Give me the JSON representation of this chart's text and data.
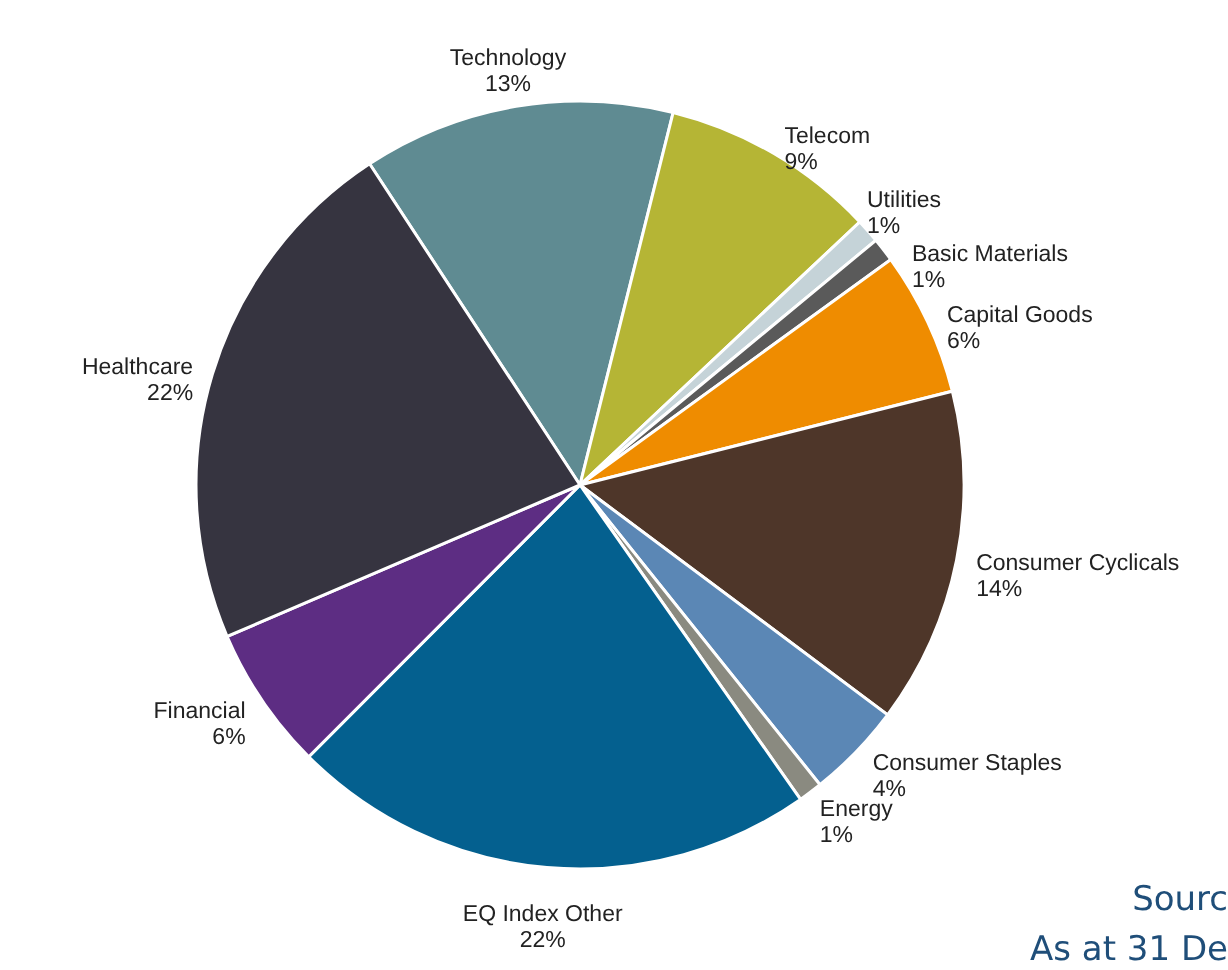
{
  "chart_data": {
    "type": "pie",
    "categories": [
      "Technology",
      "Telecom",
      "Utilities",
      "Basic Materials",
      "Capital Goods",
      "Consumer Cyclicals",
      "Consumer Staples",
      "Energy",
      "EQ Index Other",
      "Financial",
      "Healthcare"
    ],
    "values": [
      13,
      9,
      1,
      1,
      6,
      14,
      4,
      1,
      22,
      6,
      22
    ],
    "value_labels": [
      "13%",
      "9%",
      "1%",
      "1%",
      "6%",
      "14%",
      "4%",
      "1%",
      "22%",
      "6%",
      "22%"
    ],
    "colors": [
      "#5f8b92",
      "#b5b535",
      "#c5d3d8",
      "#5a5a5a",
      "#ef8c00",
      "#4e3629",
      "#5b87b5",
      "#8a8a80",
      "#04608f",
      "#5d2d83",
      "#363440"
    ],
    "annotations": [
      "Sourc",
      "As at 31 De"
    ]
  }
}
